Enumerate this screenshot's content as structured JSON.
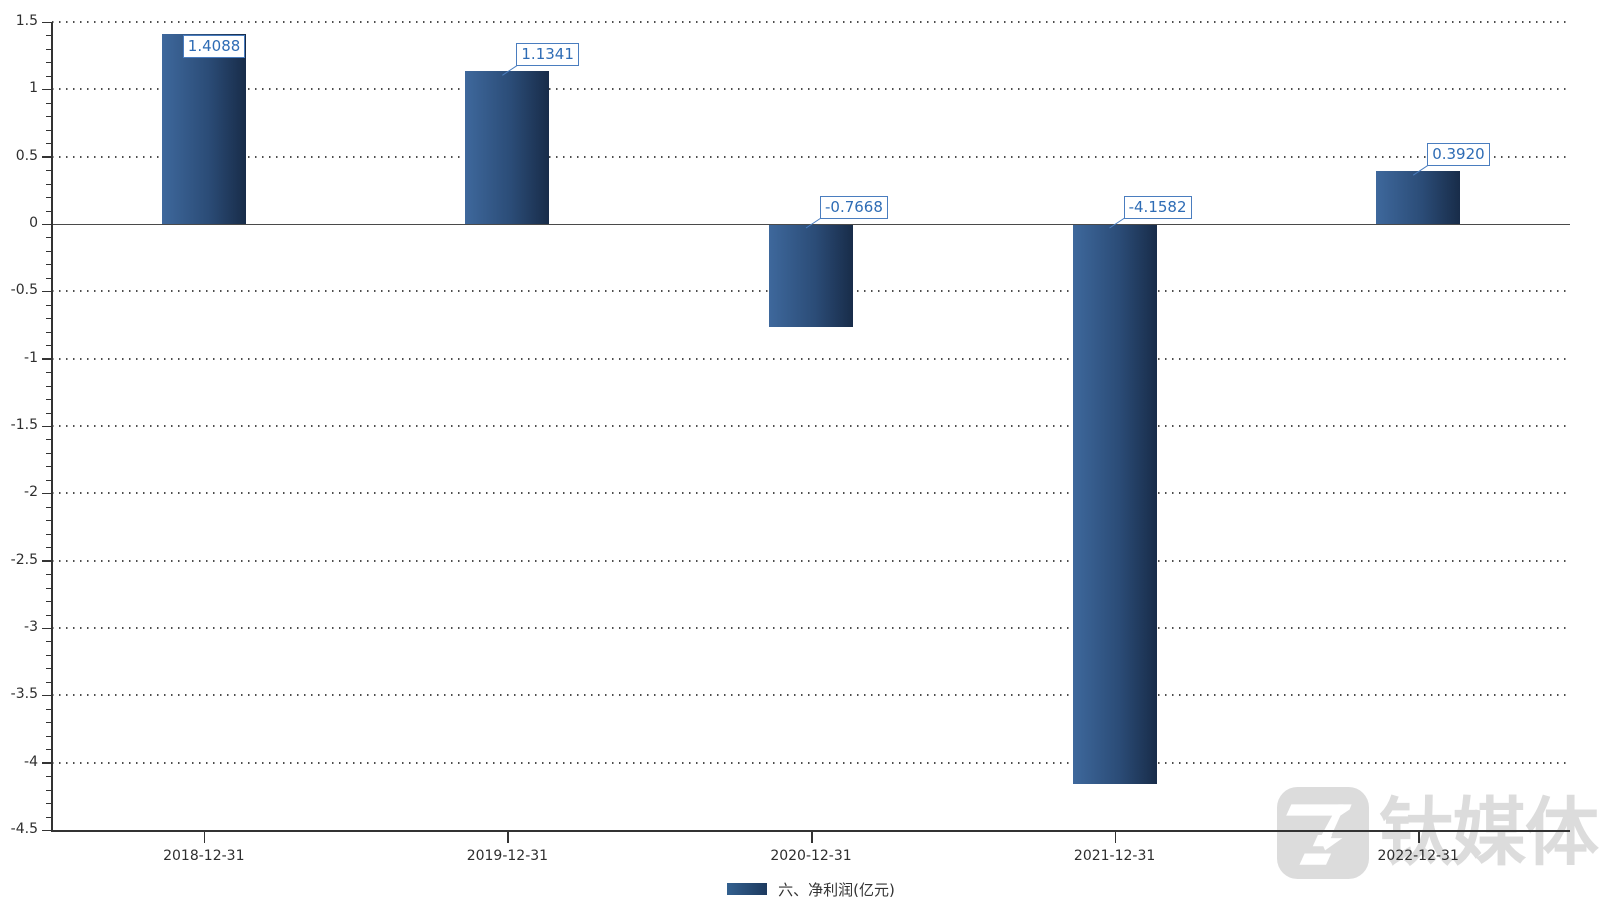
{
  "chart_data": {
    "type": "bar",
    "title": "",
    "xlabel": "",
    "ylabel": "",
    "categories": [
      "2018-12-31",
      "2019-12-31",
      "2020-12-31",
      "2021-12-31",
      "2022-12-31"
    ],
    "series": [
      {
        "name": "六、净利润(亿元)",
        "values": [
          1.4088,
          1.1341,
          -0.7668,
          -4.1582,
          0.392
        ],
        "value_labels": [
          "1.4088",
          "1.1341",
          "-0.7668",
          "-4.1582",
          "0.3920"
        ]
      }
    ],
    "legend": "六、净利润(亿元)",
    "legend_position": "bottom-center",
    "ylim": [
      -4.5,
      1.5
    ],
    "ytick_step": 0.5,
    "yticks": [
      "1.5",
      "1",
      "0.5",
      "0",
      "-0.5",
      "-1",
      "-1.5",
      "-2",
      "-2.5",
      "-3",
      "-3.5",
      "-4",
      "-4.5"
    ],
    "grid": "horizontal-dotted",
    "colors": {
      "bar_gradient_left": "#3e689c",
      "bar_gradient_right": "#182c49",
      "label_box_border": "#4a7dbf",
      "label_box_text": "#2e6cb5",
      "axis": "#333333",
      "zero_line": "#4a4a4a",
      "gridline_dots": "#4d4d4d",
      "tick_text": "#2e2e2e"
    }
  },
  "watermark": {
    "text": "钛媒体",
    "logo": "tmtpost-logo",
    "color": "#dcdcdc"
  }
}
